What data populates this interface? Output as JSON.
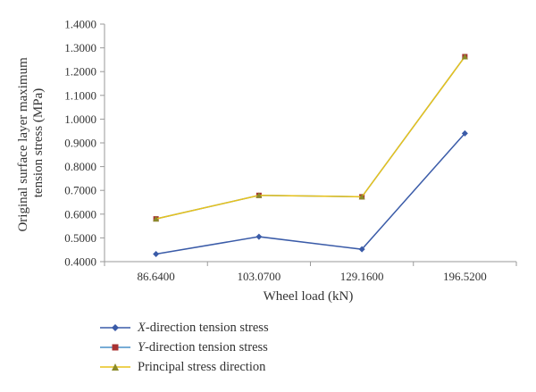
{
  "chart_data": {
    "type": "line",
    "categories": [
      "86.6400",
      "103.0700",
      "129.1600",
      "196.5200"
    ],
    "xlabel": "Wheel load (kN)",
    "ylabel_lines": [
      "Original surface layer maximum",
      "tension stress (MPa)"
    ],
    "ylim": [
      0.4,
      1.4
    ],
    "yticks": [
      "0.4000",
      "0.5000",
      "0.6000",
      "0.7000",
      "0.8000",
      "0.9000",
      "1.0000",
      "1.1000",
      "1.2000",
      "1.3000",
      "1.4000"
    ],
    "grid": false,
    "legend_placement": "bottom",
    "series": [
      {
        "name": "X-direction tension stress",
        "name_italic": "X",
        "name_rest": "-direction tension stress",
        "values": [
          0.432,
          0.505,
          0.452,
          0.94
        ],
        "color": "#3a5ba8",
        "marker": "diamond"
      },
      {
        "name": "Y-direction tension stress",
        "name_italic": "Y",
        "name_rest": "-direction tension stress",
        "values": [
          0.58,
          0.679,
          0.673,
          1.263
        ],
        "color": "#4a90c8",
        "marker": "square",
        "marker_color": "#a83232"
      },
      {
        "name": "Principal stress direction",
        "name_italic": "",
        "name_rest": "Principal stress direction",
        "values": [
          0.58,
          0.679,
          0.673,
          1.263
        ],
        "color": "#e8c21a",
        "marker": "triangle",
        "marker_color": "#8a8a2a"
      }
    ]
  }
}
